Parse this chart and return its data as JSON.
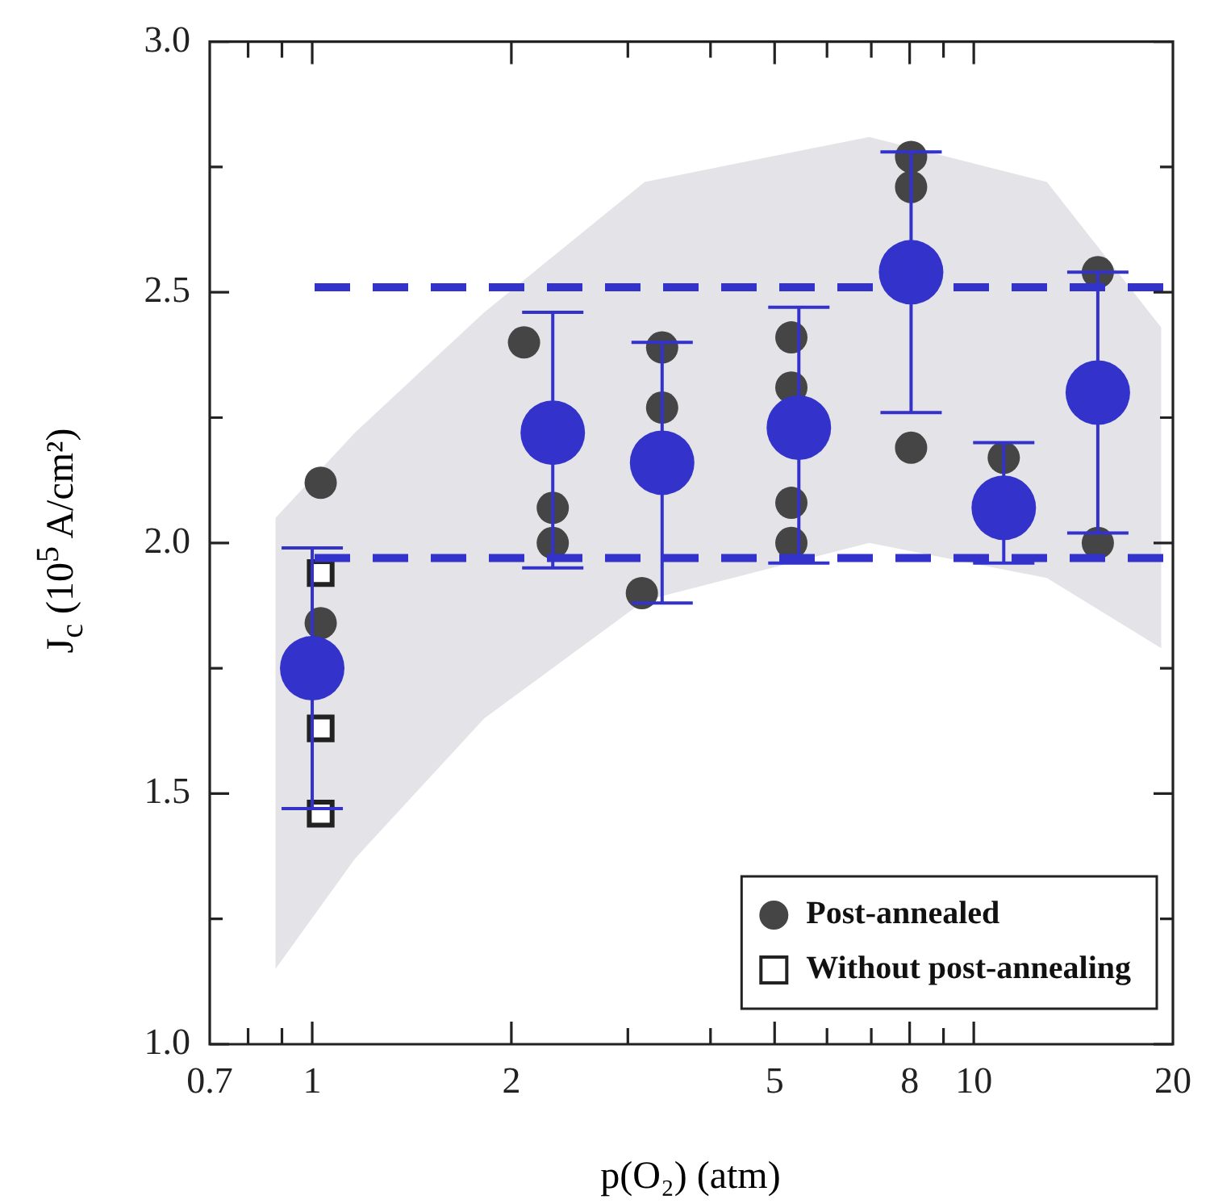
{
  "chart_data": {
    "type": "scatter",
    "xlabel": "p(O₂) (atm)",
    "ylabel": "J$_{c}$ (10$^{5}$ A/cm²)",
    "log": "x",
    "xlim": [
      0.7,
      20
    ],
    "ylim": [
      1,
      3
    ],
    "xticks": [
      0.7,
      {
        "value": 0.8,
        "label": null
      },
      {
        "value": 0.9,
        "label": null
      },
      1,
      2,
      {
        "value": 3,
        "label": null
      },
      {
        "value": 4,
        "label": null
      },
      5,
      {
        "value": 6,
        "label": null
      },
      {
        "value": 7,
        "label": null
      },
      8,
      {
        "value": 9,
        "label": null
      },
      10,
      20
    ],
    "yticks": [
      {
        "value": 1,
        "label": "1.0"
      },
      {
        "value": 1.25,
        "label": null
      },
      {
        "value": 1.5,
        "label": "1.5"
      },
      {
        "value": 1.75,
        "label": null
      },
      {
        "value": 2,
        "label": "2.0"
      },
      {
        "value": 2.25,
        "label": null
      },
      {
        "value": 2.5,
        "label": "2.5"
      },
      {
        "value": 2.75,
        "label": null
      },
      {
        "value": 3,
        "label": "3.0"
      }
    ],
    "grid": false,
    "legend": "bottom right",
    "series": [
      {
        "type": "area",
        "color": "#e4e4e8",
        "x": [
          0.88,
          1.16,
          1.82,
          3.18,
          6.95,
          12.9,
          19.2
        ],
        "values": [
          null,
          null,
          null,
          null,
          null,
          null,
          null
        ],
        "lower": [
          1.15,
          1.37,
          1.65,
          1.885,
          2.0,
          1.93,
          1.79
        ],
        "upper": [
          2.05,
          2.22,
          2.46,
          2.72,
          2.81,
          2.72,
          2.43
        ]
      },
      {
        "name": "Post-annealed",
        "marker": "circle",
        "color": "#454545",
        "x": [
          1.03,
          1.03,
          2.09,
          2.31,
          2.31,
          3.38,
          3.38,
          3.15,
          5.3,
          5.3,
          5.3,
          5.3,
          8.04,
          8.04,
          8.04,
          11.1,
          15.4,
          15.4
        ],
        "values": [
          2.12,
          1.84,
          2.4,
          2.07,
          2.0,
          2.39,
          2.27,
          1.9,
          2.41,
          2.31,
          2.08,
          2.0,
          2.77,
          2.71,
          2.19,
          2.17,
          2.54,
          2.0
        ]
      },
      {
        "name": "Without post-annealing",
        "marker": "square",
        "color": "#222222",
        "x": [
          1.03,
          1.03,
          1.03
        ],
        "values": [
          1.94,
          1.63,
          1.46
        ]
      },
      {
        "marker": "circle",
        "color": "#3333cc",
        "x": [
          1,
          2.31,
          3.38,
          5.44,
          8.04,
          11.1,
          15.4
        ],
        "values": [
          1.75,
          2.22,
          2.16,
          2.23,
          2.54,
          2.07,
          2.3
        ],
        "errors": [
          [
            1.47,
            1.99
          ],
          [
            1.95,
            2.46
          ],
          [
            1.88,
            2.4
          ],
          [
            1.96,
            2.47
          ],
          [
            2.26,
            2.78
          ],
          [
            1.96,
            2.2
          ],
          [
            2.02,
            2.54
          ]
        ]
      }
    ],
    "ref_lines": [
      {
        "axis": "y",
        "value": 2.51,
        "color": "#3333cc",
        "line_style": "dashed"
      },
      {
        "axis": "y",
        "value": 1.97,
        "color": "#3333cc",
        "line_style": "dashed"
      }
    ]
  }
}
